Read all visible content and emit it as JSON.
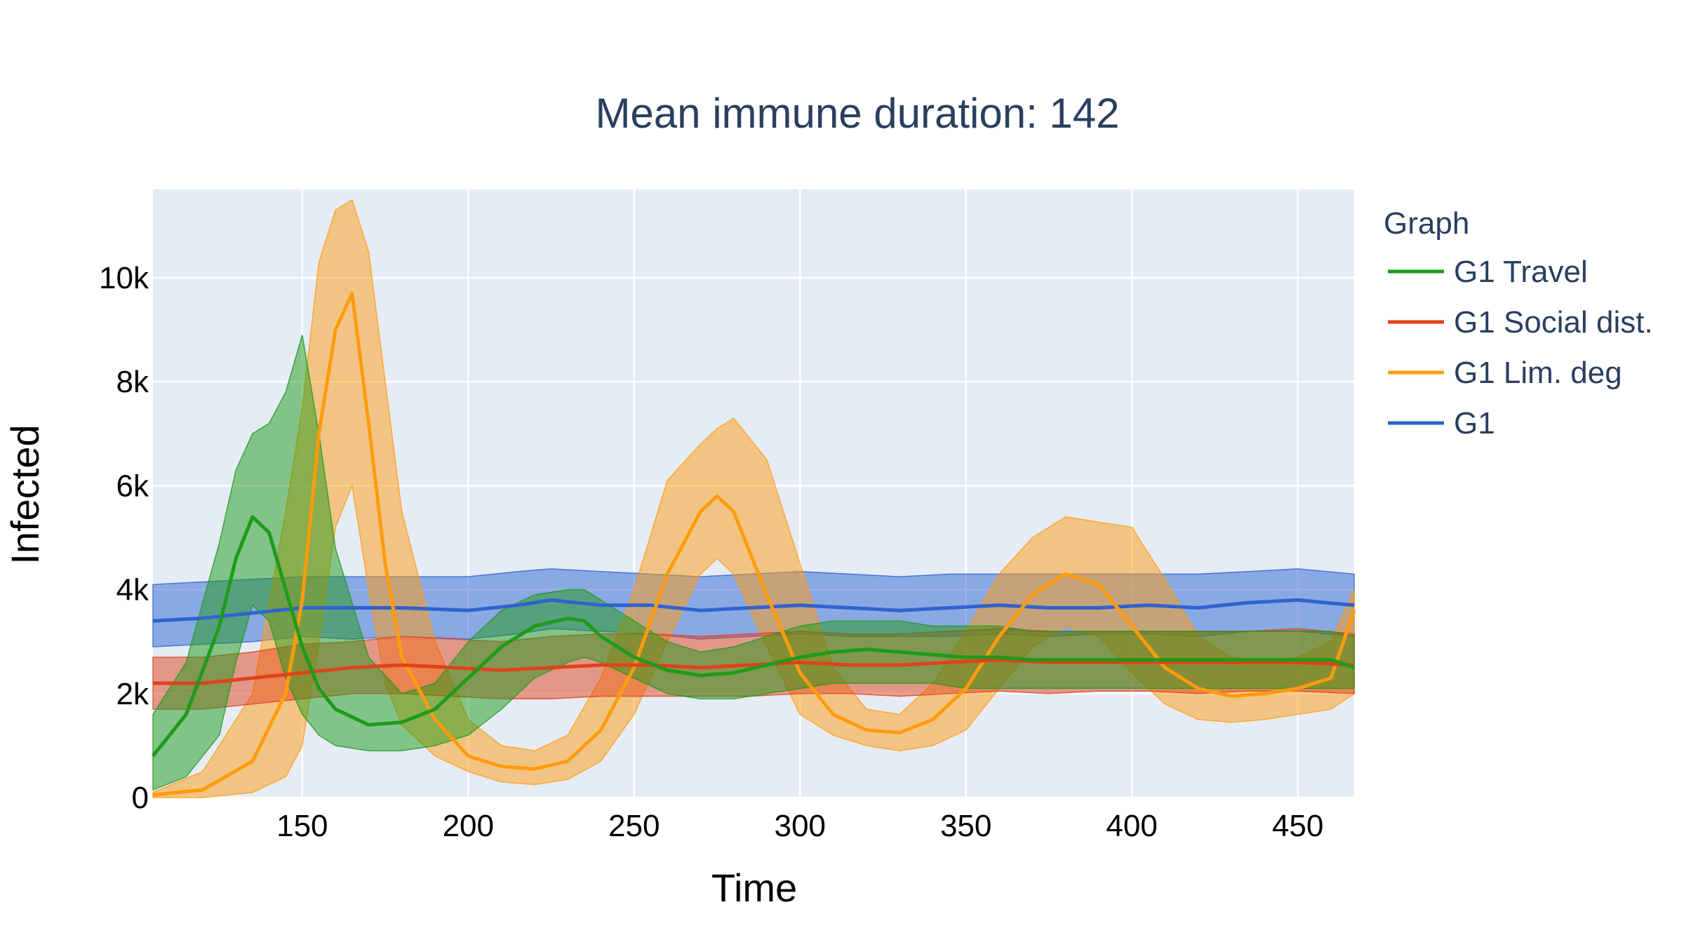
{
  "chart_data": {
    "type": "line",
    "title": "Mean immune duration: 142",
    "xlabel": "Time",
    "ylabel": "Infected",
    "xlim": [
      105,
      467
    ],
    "ylim": [
      0,
      11700
    ],
    "xticks": [
      150,
      200,
      250,
      300,
      350,
      400,
      450
    ],
    "yticks": [
      0,
      2000,
      4000,
      6000,
      8000,
      10000
    ],
    "ytick_labels": [
      "0",
      "2k",
      "4k",
      "6k",
      "8k",
      "10k"
    ],
    "grid": true,
    "legend": {
      "title": "Graph",
      "position": "right"
    },
    "series": [
      {
        "name": "G1",
        "color": "#2f63cf",
        "x": [
          105,
          120,
          135,
          150,
          165,
          180,
          200,
          215,
          225,
          240,
          255,
          270,
          285,
          300,
          315,
          330,
          345,
          360,
          375,
          390,
          405,
          420,
          435,
          450,
          467
        ],
        "mean": [
          3400,
          3450,
          3550,
          3650,
          3650,
          3650,
          3600,
          3700,
          3800,
          3700,
          3700,
          3600,
          3650,
          3700,
          3650,
          3600,
          3650,
          3700,
          3650,
          3650,
          3700,
          3650,
          3750,
          3800,
          3700
        ],
        "lower": [
          2900,
          2950,
          3000,
          3100,
          3050,
          3100,
          3050,
          3150,
          3250,
          3200,
          3150,
          3050,
          3100,
          3150,
          3100,
          3100,
          3100,
          3150,
          3100,
          3150,
          3150,
          3100,
          3200,
          3200,
          3100
        ],
        "upper": [
          4100,
          4150,
          4200,
          4250,
          4250,
          4250,
          4250,
          4350,
          4400,
          4350,
          4300,
          4250,
          4300,
          4350,
          4300,
          4250,
          4300,
          4300,
          4300,
          4300,
          4300,
          4300,
          4350,
          4400,
          4300
        ]
      },
      {
        "name": "G1 Lim. deg",
        "color": "#ff9b0f",
        "x": [
          105,
          120,
          135,
          145,
          150,
          155,
          160,
          165,
          170,
          175,
          180,
          190,
          200,
          210,
          220,
          230,
          240,
          250,
          260,
          270,
          275,
          280,
          290,
          300,
          310,
          320,
          330,
          340,
          350,
          360,
          370,
          380,
          390,
          400,
          410,
          420,
          430,
          440,
          450,
          460,
          467
        ],
        "mean": [
          50,
          150,
          700,
          2000,
          3800,
          7000,
          9000,
          9700,
          7200,
          4500,
          2700,
          1500,
          800,
          600,
          550,
          700,
          1300,
          2500,
          4300,
          5500,
          5800,
          5500,
          3900,
          2400,
          1600,
          1300,
          1250,
          1500,
          2100,
          3100,
          3900,
          4300,
          4100,
          3300,
          2500,
          2100,
          1950,
          2000,
          2100,
          2300,
          3600
        ],
        "lower": [
          0,
          0,
          100,
          400,
          1000,
          3000,
          5200,
          6000,
          4000,
          2200,
          1400,
          800,
          500,
          300,
          250,
          350,
          700,
          1600,
          3000,
          4300,
          4600,
          4300,
          2900,
          1600,
          1200,
          1000,
          900,
          1000,
          1300,
          2100,
          2900,
          3300,
          3100,
          2400,
          1800,
          1500,
          1450,
          1500,
          1600,
          1700,
          2000
        ],
        "upper": [
          100,
          500,
          2000,
          5500,
          7500,
          10300,
          11300,
          11500,
          10500,
          8000,
          5500,
          3000,
          1500,
          1000,
          900,
          1200,
          2300,
          4000,
          6100,
          6800,
          7100,
          7300,
          6500,
          4500,
          2500,
          1700,
          1600,
          2200,
          3200,
          4300,
          5000,
          5400,
          5300,
          5200,
          4200,
          3100,
          2700,
          2600,
          2700,
          3000,
          4000
        ]
      },
      {
        "name": "G1 Social dist.",
        "color": "#e0421c",
        "x": [
          105,
          120,
          135,
          150,
          165,
          180,
          195,
          210,
          225,
          240,
          255,
          270,
          285,
          300,
          315,
          330,
          345,
          360,
          375,
          390,
          405,
          420,
          435,
          450,
          467
        ],
        "mean": [
          2200,
          2200,
          2300,
          2400,
          2500,
          2550,
          2500,
          2450,
          2500,
          2550,
          2550,
          2500,
          2550,
          2600,
          2550,
          2550,
          2600,
          2650,
          2600,
          2600,
          2600,
          2600,
          2600,
          2600,
          2550
        ],
        "lower": [
          1700,
          1700,
          1800,
          1900,
          2000,
          2000,
          1950,
          1900,
          1900,
          1950,
          1950,
          1950,
          1950,
          2000,
          2000,
          1950,
          2000,
          2050,
          2000,
          2050,
          2050,
          2000,
          2050,
          2050,
          2000
        ],
        "upper": [
          2700,
          2700,
          2800,
          2950,
          3000,
          3100,
          3050,
          3000,
          3100,
          3150,
          3150,
          3100,
          3150,
          3200,
          3150,
          3150,
          3200,
          3250,
          3200,
          3200,
          3200,
          3200,
          3200,
          3250,
          3150
        ]
      },
      {
        "name": "G1 Travel",
        "color": "#1f9a1a",
        "x": [
          105,
          115,
          125,
          130,
          135,
          140,
          145,
          150,
          155,
          160,
          170,
          180,
          190,
          200,
          210,
          220,
          230,
          235,
          240,
          250,
          260,
          270,
          280,
          290,
          300,
          310,
          320,
          330,
          340,
          350,
          360,
          370,
          380,
          390,
          400,
          410,
          420,
          430,
          440,
          450,
          460,
          467
        ],
        "mean": [
          800,
          1600,
          3300,
          4600,
          5400,
          5100,
          4000,
          2900,
          2100,
          1700,
          1400,
          1450,
          1700,
          2300,
          2900,
          3300,
          3450,
          3400,
          3100,
          2700,
          2450,
          2350,
          2400,
          2550,
          2700,
          2800,
          2850,
          2800,
          2750,
          2700,
          2700,
          2650,
          2650,
          2650,
          2650,
          2650,
          2650,
          2650,
          2650,
          2650,
          2650,
          2500
        ],
        "lower": [
          150,
          400,
          1200,
          2600,
          3700,
          3400,
          2300,
          1600,
          1200,
          1000,
          900,
          900,
          1000,
          1200,
          1700,
          2300,
          2600,
          2700,
          2600,
          2300,
          2000,
          1900,
          1900,
          2000,
          2100,
          2200,
          2200,
          2200,
          2200,
          2100,
          2100,
          2100,
          2100,
          2100,
          2100,
          2100,
          2100,
          2100,
          2100,
          2100,
          2100,
          2100
        ],
        "upper": [
          1600,
          2600,
          4900,
          6300,
          7000,
          7200,
          7800,
          8900,
          7000,
          4800,
          2700,
          2000,
          2200,
          3000,
          3600,
          3900,
          4000,
          4000,
          3800,
          3400,
          3000,
          2800,
          2900,
          3100,
          3300,
          3400,
          3400,
          3400,
          3300,
          3300,
          3300,
          3200,
          3200,
          3200,
          3200,
          3200,
          3200,
          3200,
          3200,
          3200,
          3200,
          3100
        ]
      }
    ],
    "legend_order": [
      "G1 Travel",
      "G1 Social dist.",
      "G1 Lim. deg",
      "G1"
    ]
  }
}
